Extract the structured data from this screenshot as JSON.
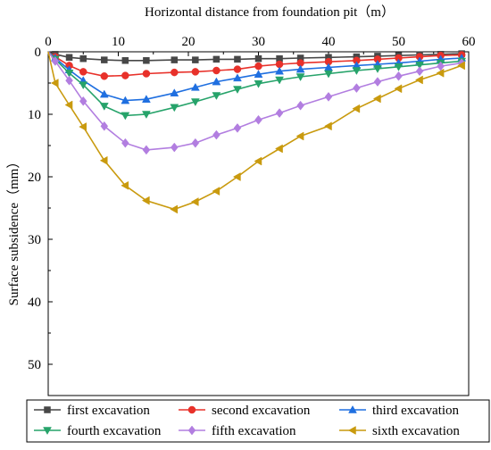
{
  "chart_data": {
    "type": "line",
    "xlabel": "Horizontal distance from foundation pit（m）",
    "ylabel": "Surface subsidence（mm）",
    "xlim": [
      0,
      60
    ],
    "ylim": [
      0,
      55
    ],
    "x_axis_position": "top",
    "y_inverted": true,
    "x_ticks": [
      0,
      10,
      20,
      30,
      40,
      50,
      60
    ],
    "y_ticks": [
      0,
      10,
      20,
      30,
      40,
      50
    ],
    "grid": false,
    "legend_position": "bottom",
    "x": [
      0,
      1,
      3,
      5,
      8,
      11,
      14,
      18,
      21,
      24,
      27,
      30,
      33,
      36,
      40,
      44,
      47,
      50,
      53,
      56,
      59
    ],
    "series": [
      {
        "name": "first excavation",
        "marker": "square",
        "color": "#474747",
        "values": [
          0,
          0.4,
          0.9,
          1.1,
          1.3,
          1.4,
          1.4,
          1.3,
          1.3,
          1.2,
          1.2,
          1.1,
          1.1,
          1.0,
          0.9,
          0.8,
          0.7,
          0.6,
          0.5,
          0.4,
          0.3
        ]
      },
      {
        "name": "second excavation",
        "marker": "circle",
        "color": "#e8312a",
        "values": [
          0,
          0.8,
          2.2,
          3.2,
          3.9,
          3.8,
          3.5,
          3.3,
          3.2,
          3.0,
          2.8,
          2.3,
          2.0,
          1.8,
          1.6,
          1.4,
          1.2,
          1.0,
          0.8,
          0.6,
          0.5
        ]
      },
      {
        "name": "third excavation",
        "marker": "triangle-up",
        "color": "#1f6fe0",
        "values": [
          0,
          1.0,
          2.9,
          4.6,
          6.8,
          7.8,
          7.6,
          6.6,
          5.7,
          4.8,
          4.2,
          3.6,
          3.1,
          2.8,
          2.5,
          2.2,
          2.0,
          1.8,
          1.5,
          1.2,
          1.0
        ]
      },
      {
        "name": "fourth excavation",
        "marker": "triangle-down",
        "color": "#26a36a",
        "values": [
          0,
          1.2,
          3.4,
          5.3,
          8.7,
          10.2,
          10.0,
          8.9,
          8.0,
          7.0,
          6.0,
          5.1,
          4.5,
          4.0,
          3.5,
          3.0,
          2.7,
          2.4,
          2.1,
          1.8,
          1.5
        ]
      },
      {
        "name": "fifth excavation",
        "marker": "diamond",
        "color": "#b27ee0",
        "values": [
          0,
          1.5,
          4.6,
          7.9,
          11.9,
          14.6,
          15.7,
          15.3,
          14.6,
          13.3,
          12.2,
          10.9,
          9.8,
          8.6,
          7.2,
          5.8,
          4.8,
          3.9,
          3.1,
          2.3,
          1.8
        ]
      },
      {
        "name": "sixth excavation",
        "marker": "triangle-left",
        "color": "#c99a0e",
        "values": [
          0,
          5.0,
          8.5,
          12.0,
          17.4,
          21.4,
          23.8,
          25.2,
          24.0,
          22.3,
          20.0,
          17.5,
          15.5,
          13.5,
          11.9,
          9.1,
          7.5,
          5.9,
          4.5,
          3.4,
          2.2
        ]
      }
    ]
  }
}
